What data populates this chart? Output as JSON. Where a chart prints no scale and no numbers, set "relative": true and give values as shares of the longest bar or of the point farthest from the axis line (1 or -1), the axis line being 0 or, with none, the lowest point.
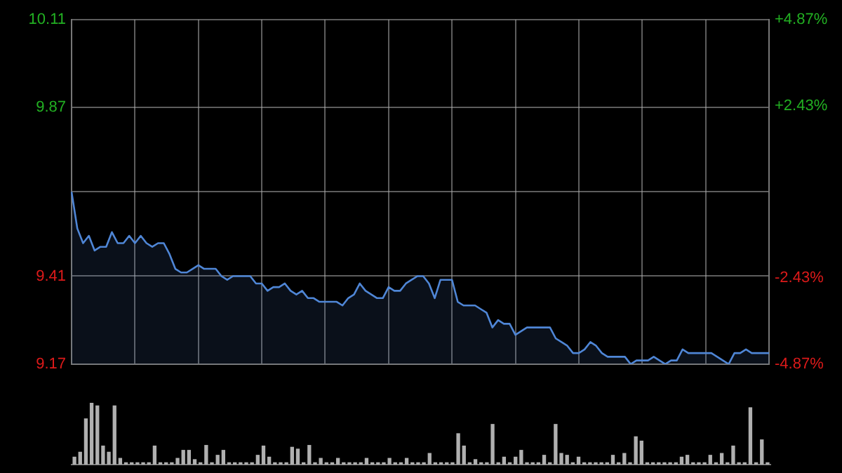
{
  "chart_data": [
    {
      "type": "area",
      "categories": [
        null,
        null,
        null,
        null,
        null,
        null,
        null,
        null,
        null,
        null,
        null,
        null,
        null,
        null,
        null,
        null,
        null,
        null,
        null,
        null,
        null,
        null,
        null,
        null,
        null,
        null,
        null,
        null,
        null,
        null,
        null,
        null,
        null,
        null,
        null,
        null,
        null,
        null,
        null,
        null,
        null,
        null,
        null,
        null,
        null,
        null,
        null,
        null,
        null,
        null,
        null,
        null,
        null,
        null,
        null,
        null,
        null,
        null,
        null,
        null,
        null,
        null,
        null,
        null,
        null,
        null,
        null,
        null,
        null,
        null,
        null,
        null,
        null,
        null,
        null,
        null,
        null,
        null,
        null,
        null,
        null,
        null,
        null,
        null,
        null,
        null,
        null,
        null,
        null,
        null,
        null,
        null,
        null,
        null,
        null,
        null,
        null,
        null,
        null,
        null,
        null,
        null,
        null,
        null,
        null,
        null,
        null,
        null,
        null,
        null,
        null,
        null,
        null,
        null,
        null,
        null,
        null,
        null,
        null,
        null,
        null,
        null
      ],
      "series": [
        {
          "color": "#4f86d6",
          "values": [
            9.64,
            9.54,
            9.5,
            9.52,
            9.48,
            9.49,
            9.49,
            9.53,
            9.5,
            9.5,
            9.52,
            9.5,
            9.52,
            9.5,
            9.49,
            9.5,
            9.5,
            9.47,
            9.43,
            9.42,
            9.42,
            9.43,
            9.44,
            9.43,
            9.43,
            9.43,
            9.41,
            9.4,
            9.41,
            9.41,
            9.41,
            9.41,
            9.39,
            9.39,
            9.37,
            9.38,
            9.38,
            9.39,
            9.37,
            9.36,
            9.37,
            9.35,
            9.35,
            9.34,
            9.34,
            9.34,
            9.34,
            9.33,
            9.35,
            9.36,
            9.39,
            9.37,
            9.36,
            9.35,
            9.35,
            9.38,
            9.37,
            9.37,
            9.39,
            9.4,
            9.41,
            9.41,
            9.39,
            9.35,
            9.4,
            9.4,
            9.4,
            9.34,
            9.33,
            9.33,
            9.33,
            9.32,
            9.31,
            9.27,
            9.29,
            9.28,
            9.28,
            9.25,
            9.26,
            9.27,
            9.27,
            9.27,
            9.27,
            9.27,
            9.24,
            9.23,
            9.22,
            9.2,
            9.2,
            9.21,
            9.23,
            9.22,
            9.2,
            9.19,
            9.19,
            9.19,
            9.19,
            9.17,
            9.18,
            9.18,
            9.18,
            9.19,
            9.18,
            9.17,
            9.18,
            9.18,
            9.21,
            9.2,
            9.2,
            9.2,
            9.2,
            9.2,
            9.19,
            9.18,
            9.17,
            9.2,
            9.2,
            9.21,
            9.2,
            9.2,
            9.2,
            9.2
          ]
        }
      ],
      "ylim": [
        9.17,
        10.11
      ],
      "yticks": [
        9.17,
        9.41,
        {
          "value": 9.64,
          "label": null
        },
        9.87,
        10.11
      ],
      "y2lim": [
        -4.87,
        4.87
      ],
      "y2ticks": [
        {
          "value": -4.87,
          "label": "-4.87%"
        },
        {
          "value": -2.43,
          "label": "-2.43%"
        },
        {
          "value": 0,
          "label": null
        },
        {
          "value": 2.43,
          "label": "+2.43%"
        },
        {
          "value": 4.87,
          "label": "+4.87%"
        }
      ],
      "grid": true,
      "legend": false
    },
    {
      "type": "bar",
      "relative": true,
      "categories": [
        null,
        null,
        null,
        null,
        null,
        null,
        null,
        null,
        null,
        null,
        null,
        null,
        null,
        null,
        null,
        null,
        null,
        null,
        null,
        null,
        null,
        null,
        null,
        null,
        null,
        null,
        null,
        null,
        null,
        null,
        null,
        null,
        null,
        null,
        null,
        null,
        null,
        null,
        null,
        null,
        null,
        null,
        null,
        null,
        null,
        null,
        null,
        null,
        null,
        null,
        null,
        null,
        null,
        null,
        null,
        null,
        null,
        null,
        null,
        null,
        null,
        null,
        null,
        null,
        null,
        null,
        null,
        null,
        null,
        null,
        null,
        null,
        null,
        null,
        null,
        null,
        null,
        null,
        null,
        null,
        null,
        null,
        null,
        null,
        null,
        null,
        null,
        null,
        null,
        null,
        null,
        null,
        null,
        null,
        null,
        null,
        null,
        null,
        null,
        null,
        null,
        null,
        null,
        null,
        null,
        null,
        null,
        null,
        null,
        null,
        null,
        null,
        null,
        null,
        null,
        null,
        null,
        null,
        null,
        null,
        null,
        null
      ],
      "series": [
        {
          "color": "#b0b0b0",
          "values": [
            0.12,
            0.2,
            0.74,
            1.0,
            0.95,
            0.3,
            0.2,
            0.95,
            0.1,
            0.03,
            0.03,
            0.03,
            0.03,
            0.03,
            0.3,
            0.03,
            0.03,
            0.03,
            0.1,
            0.23,
            0.23,
            0.08,
            0.03,
            0.31,
            0.03,
            0.15,
            0.23,
            0.03,
            0.03,
            0.03,
            0.03,
            0.03,
            0.15,
            0.3,
            0.12,
            0.03,
            0.03,
            0.03,
            0.28,
            0.25,
            0.03,
            0.31,
            0.03,
            0.1,
            0.03,
            0.03,
            0.1,
            0.03,
            0.03,
            0.03,
            0.03,
            0.1,
            0.03,
            0.03,
            0.03,
            0.1,
            0.03,
            0.03,
            0.1,
            0.03,
            0.03,
            0.03,
            0.18,
            0.03,
            0.03,
            0.03,
            0.03,
            0.5,
            0.3,
            0.03,
            0.08,
            0.03,
            0.03,
            0.65,
            0.03,
            0.12,
            0.03,
            0.12,
            0.23,
            0.03,
            0.03,
            0.03,
            0.15,
            0.03,
            0.65,
            0.18,
            0.15,
            0.03,
            0.12,
            0.03,
            0.03,
            0.03,
            0.03,
            0.03,
            0.15,
            0.03,
            0.18,
            0.03,
            0.45,
            0.38,
            0.03,
            0.03,
            0.03,
            0.03,
            0.03,
            0.03,
            0.12,
            0.15,
            0.03,
            0.03,
            0.03,
            0.15,
            0.03,
            0.18,
            0.03,
            0.3,
            0.03,
            0.03,
            0.92,
            0.03,
            0.4,
            0.03
          ]
        }
      ],
      "legend": false
    }
  ]
}
